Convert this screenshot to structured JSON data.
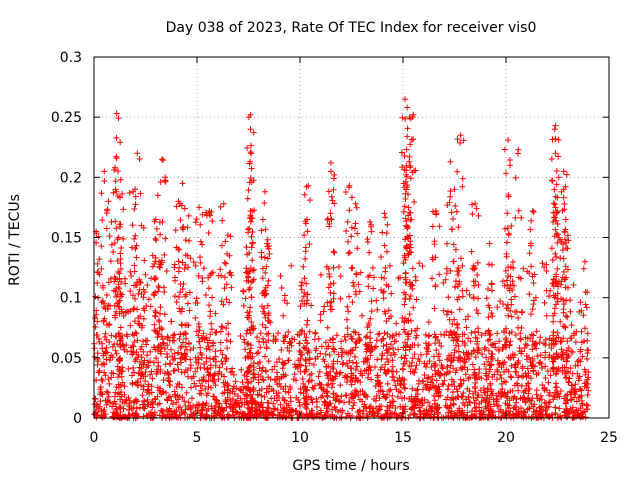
{
  "chart_data": {
    "type": "scatter",
    "title": "Day 038 of 2023, Rate Of TEC Index for receiver vis0",
    "xlabel": "GPS time / hours",
    "ylabel": "ROTI / TECUs",
    "xlim": [
      0,
      25
    ],
    "ylim": [
      0,
      0.3
    ],
    "x_ticks": [
      "0",
      "5",
      "10",
      "15",
      "20",
      "25"
    ],
    "y_ticks": [
      "0",
      "0.05",
      "0.1",
      "0.15",
      "0.2",
      "0.25",
      "0.3"
    ],
    "grid": true,
    "marker": "+",
    "color": "#ff0000",
    "series": [
      {
        "x_range": [
          0,
          24
        ],
        "typical_range": [
          0,
          0.06
        ],
        "peaks": [
          {
            "x": 0.1,
            "y": 0.155
          },
          {
            "x": 0.5,
            "y": 0.205
          },
          {
            "x": 0.7,
            "y": 0.18
          },
          {
            "x": 1.1,
            "y": 0.253
          },
          {
            "x": 1.1,
            "y": 0.216
          },
          {
            "x": 1.3,
            "y": 0.198
          },
          {
            "x": 1.2,
            "y": 0.15
          },
          {
            "x": 1.9,
            "y": 0.188
          },
          {
            "x": 2.1,
            "y": 0.22
          },
          {
            "x": 2.3,
            "y": 0.16
          },
          {
            "x": 3.0,
            "y": 0.165
          },
          {
            "x": 3.3,
            "y": 0.215
          },
          {
            "x": 3.1,
            "y": 0.185
          },
          {
            "x": 4.3,
            "y": 0.195
          },
          {
            "x": 4.1,
            "y": 0.18
          },
          {
            "x": 4.6,
            "y": 0.168
          },
          {
            "x": 5.1,
            "y": 0.175
          },
          {
            "x": 5.6,
            "y": 0.172
          },
          {
            "x": 6.3,
            "y": 0.178
          },
          {
            "x": 6.5,
            "y": 0.152
          },
          {
            "x": 7.6,
            "y": 0.252
          },
          {
            "x": 7.6,
            "y": 0.24
          },
          {
            "x": 7.6,
            "y": 0.221
          },
          {
            "x": 7.6,
            "y": 0.172
          },
          {
            "x": 7.4,
            "y": 0.142
          },
          {
            "x": 8.3,
            "y": 0.188
          },
          {
            "x": 8.2,
            "y": 0.165
          },
          {
            "x": 8.4,
            "y": 0.145
          },
          {
            "x": 10.4,
            "y": 0.193
          },
          {
            "x": 10.2,
            "y": 0.152
          },
          {
            "x": 11.5,
            "y": 0.212
          },
          {
            "x": 11.5,
            "y": 0.205
          },
          {
            "x": 12.4,
            "y": 0.193
          },
          {
            "x": 12.7,
            "y": 0.178
          },
          {
            "x": 13.4,
            "y": 0.163
          },
          {
            "x": 14.1,
            "y": 0.17
          },
          {
            "x": 15.1,
            "y": 0.265
          },
          {
            "x": 15.2,
            "y": 0.258
          },
          {
            "x": 15.5,
            "y": 0.252
          },
          {
            "x": 15.2,
            "y": 0.234
          },
          {
            "x": 15.3,
            "y": 0.213
          },
          {
            "x": 15.2,
            "y": 0.192
          },
          {
            "x": 16.6,
            "y": 0.172
          },
          {
            "x": 17.3,
            "y": 0.213
          },
          {
            "x": 17.8,
            "y": 0.235
          },
          {
            "x": 17.5,
            "y": 0.19
          },
          {
            "x": 18.5,
            "y": 0.178
          },
          {
            "x": 19.2,
            "y": 0.145
          },
          {
            "x": 20.1,
            "y": 0.231
          },
          {
            "x": 20.2,
            "y": 0.21
          },
          {
            "x": 20.6,
            "y": 0.223
          },
          {
            "x": 21.3,
            "y": 0.172
          },
          {
            "x": 22.4,
            "y": 0.243
          },
          {
            "x": 22.4,
            "y": 0.232
          },
          {
            "x": 22.4,
            "y": 0.22
          },
          {
            "x": 22.4,
            "y": 0.175
          },
          {
            "x": 22.8,
            "y": 0.205
          },
          {
            "x": 22.8,
            "y": 0.19
          },
          {
            "x": 22.9,
            "y": 0.165
          }
        ]
      }
    ]
  }
}
